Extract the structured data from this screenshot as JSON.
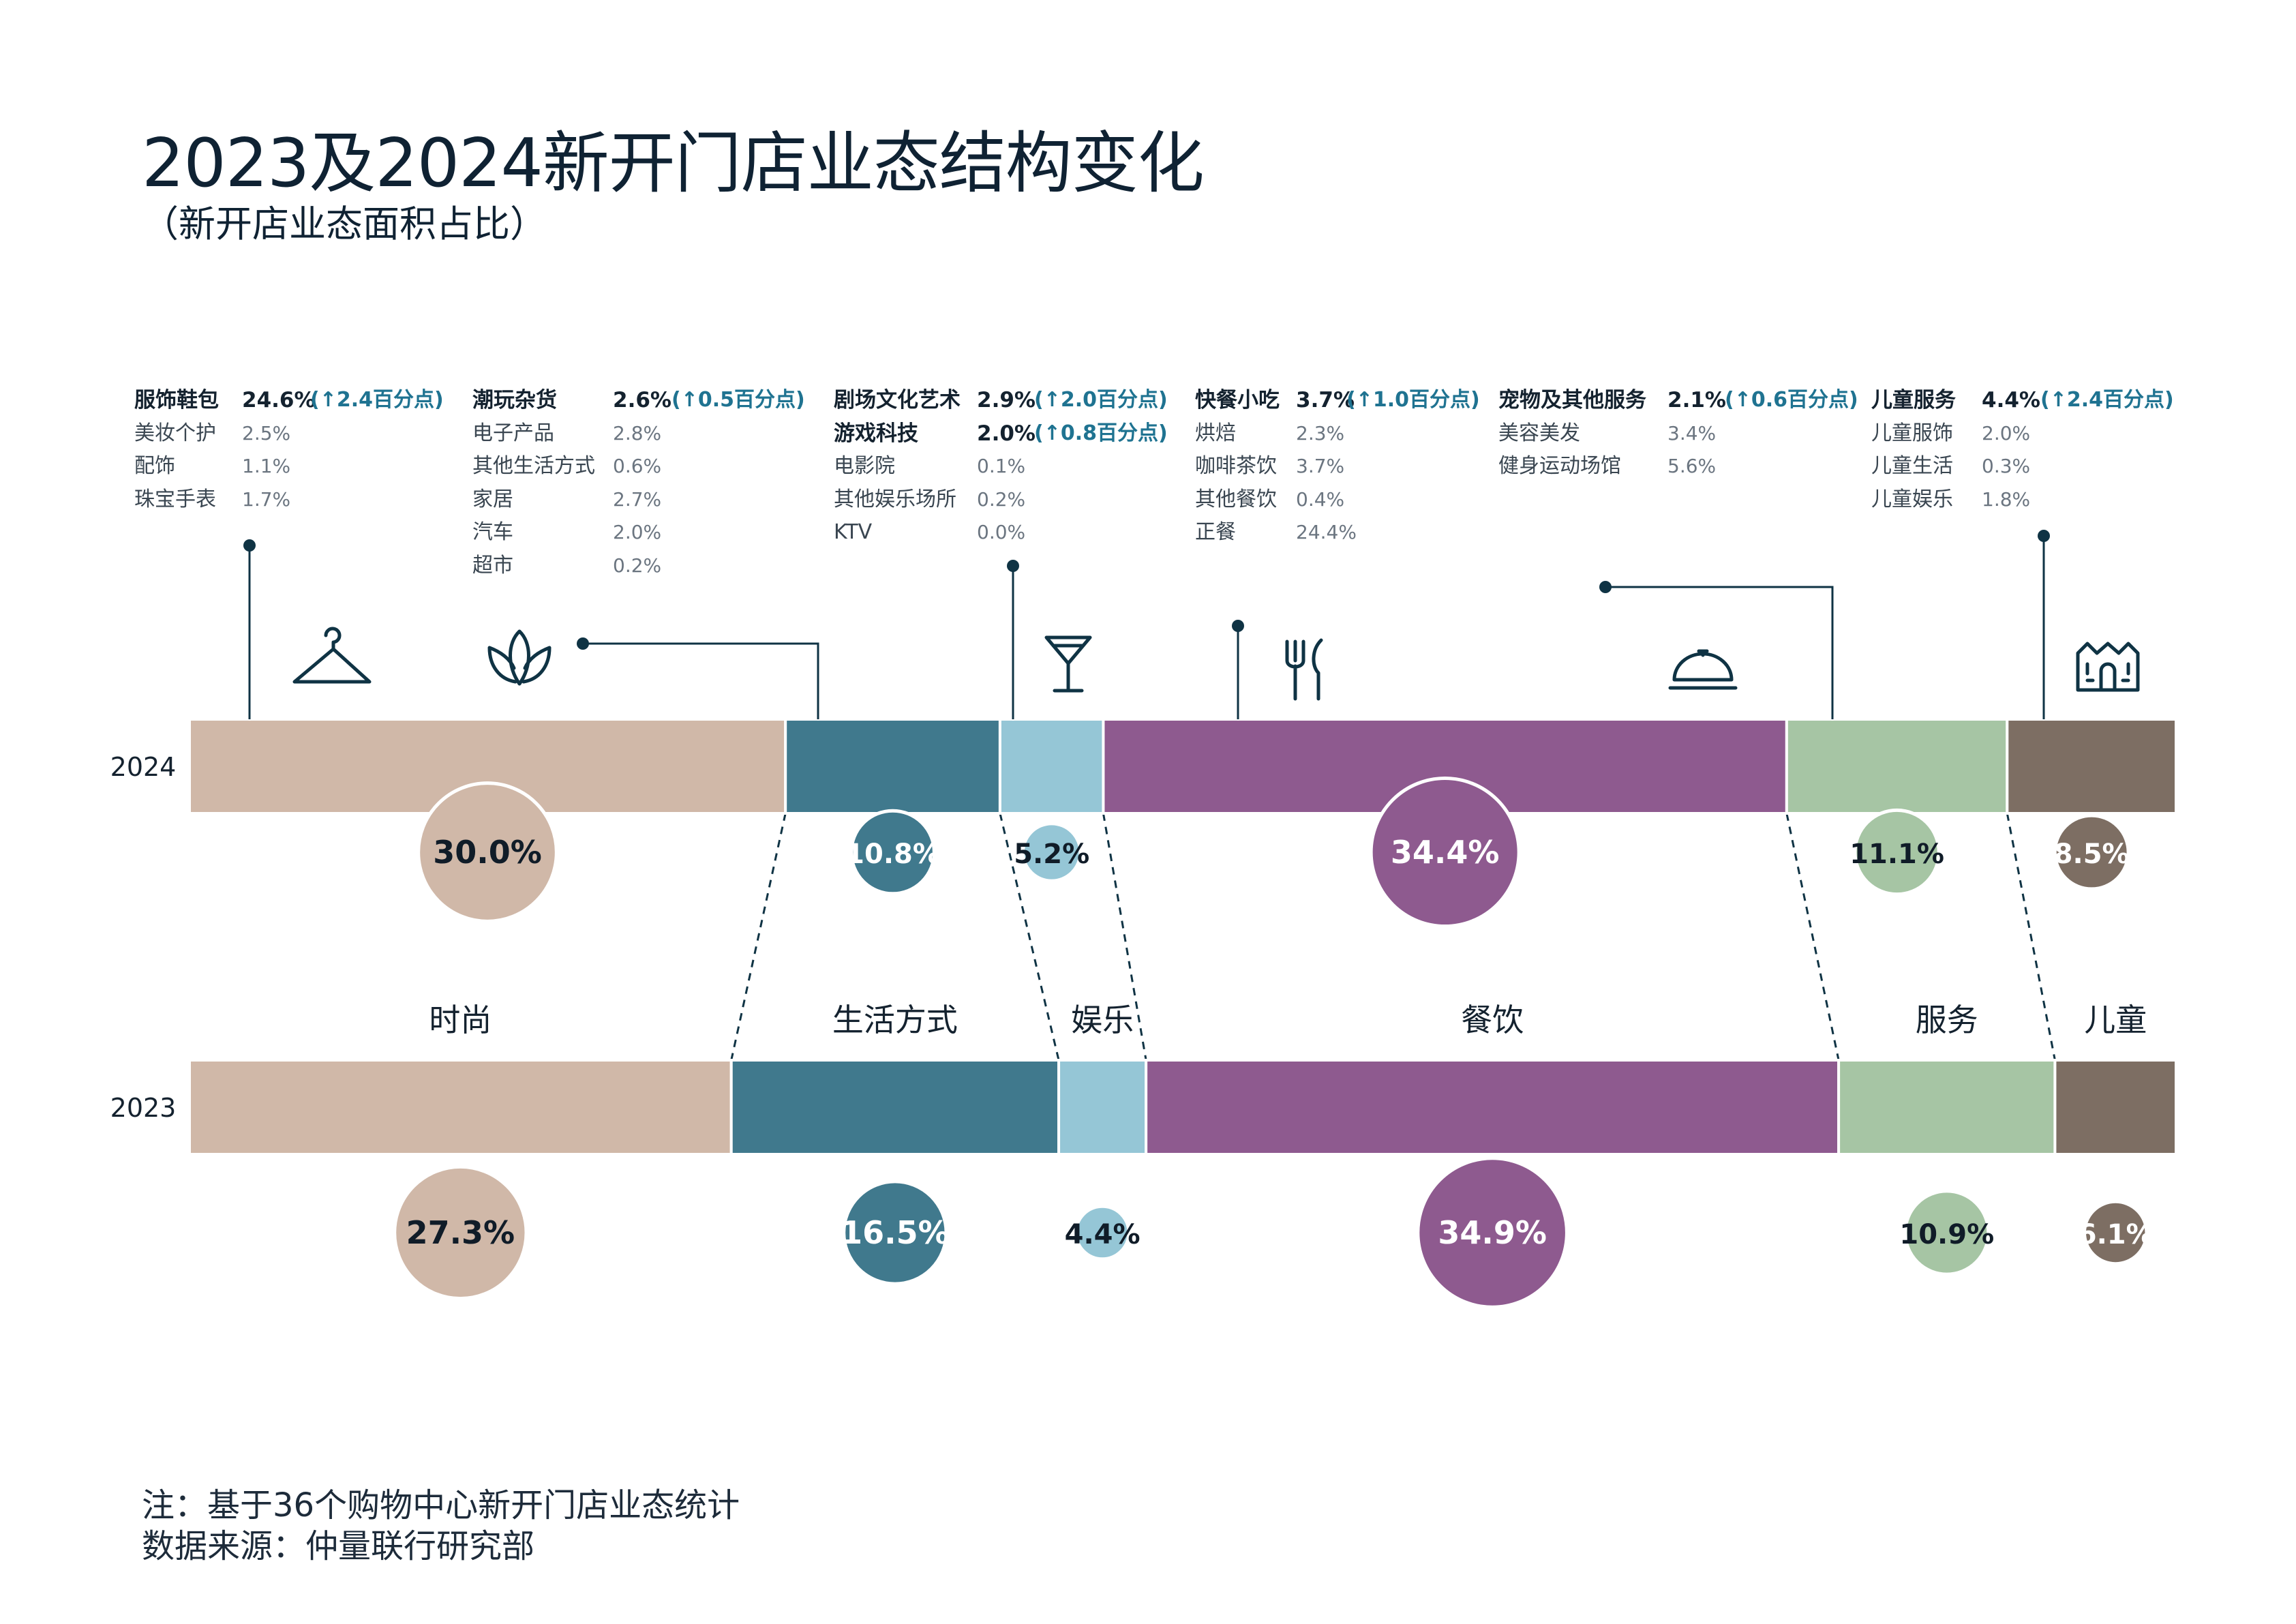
{
  "title": "2023及2024新开门店业态结构变化",
  "subtitle": "（新开店业态面积占比）",
  "notes": {
    "note": "注：基于36个购物中心新开门店业态统计",
    "source": "数据来源：仲量联行研究部"
  },
  "colors": {
    "fashion": "#d0b8a8",
    "lifestyle": "#40798d",
    "entertainment": "#95c6d6",
    "dining": "#8e5a8f",
    "services": "#a6c5a4",
    "kids": "#7d6e63",
    "ink": "#0f3344",
    "accent": "#1f7391"
  },
  "icons": [
    "hanger-icon",
    "lotus-icon",
    "cocktail-icon",
    "fork-knife-icon",
    "cloche-icon",
    "house-icon"
  ],
  "chart_data": {
    "type": "bar",
    "subtype": "stacked-100-horizontal",
    "categories": [
      "时尚",
      "生活方式",
      "娱乐",
      "餐饮",
      "服务",
      "儿童"
    ],
    "series": [
      {
        "name": "2024",
        "values": [
          30.0,
          10.8,
          5.2,
          34.4,
          11.1,
          8.5
        ],
        "labels": [
          "30.0%",
          "10.8%",
          "5.2%",
          "34.4%",
          "11.1%",
          "8.5%"
        ]
      },
      {
        "name": "2023",
        "values": [
          27.3,
          16.5,
          4.4,
          34.9,
          10.9,
          6.1
        ],
        "labels": [
          "27.3%",
          "16.5%",
          "4.4%",
          "34.9%",
          "10.9%",
          "6.1%"
        ]
      }
    ],
    "breakdown": [
      {
        "rows": [
          {
            "name": "服饰鞋包",
            "value": "24.6%",
            "change": "(↑2.4百分点)",
            "bold": true
          },
          {
            "name": "美妆个护",
            "value": "2.5%"
          },
          {
            "name": "配饰",
            "value": "1.1%"
          },
          {
            "name": "珠宝手表",
            "value": "1.7%"
          }
        ]
      },
      {
        "rows": [
          {
            "name": "潮玩杂货",
            "value": "2.6%",
            "change": "(↑0.5百分点)",
            "bold": true
          },
          {
            "name": "电子产品",
            "value": "2.8%"
          },
          {
            "name": "其他生活方式",
            "value": "0.6%"
          },
          {
            "name": "家居",
            "value": "2.7%"
          },
          {
            "name": "汽车",
            "value": "2.0%"
          },
          {
            "name": "超市",
            "value": "0.2%"
          }
        ]
      },
      {
        "rows": [
          {
            "name": "剧场文化艺术",
            "value": "2.9%",
            "change": "(↑2.0百分点)",
            "bold": true
          },
          {
            "name": "游戏科技",
            "value": "2.0%",
            "change": "(↑0.8百分点)",
            "bold": true
          },
          {
            "name": "电影院",
            "value": "0.1%"
          },
          {
            "name": "其他娱乐场所",
            "value": "0.2%"
          },
          {
            "name": "KTV",
            "value": "0.0%"
          }
        ]
      },
      {
        "rows": [
          {
            "name": "快餐小吃",
            "value": "3.7%",
            "change": "(↑1.0百分点)",
            "bold": true
          },
          {
            "name": "烘焙",
            "value": "2.3%"
          },
          {
            "name": "咖啡茶饮",
            "value": "3.7%"
          },
          {
            "name": "其他餐饮",
            "value": "0.4%"
          },
          {
            "name": "正餐",
            "value": "24.4%"
          }
        ]
      },
      {
        "rows": [
          {
            "name": "宠物及其他服务",
            "value": "2.1%",
            "change": "(↑0.6百分点)",
            "bold": true
          },
          {
            "name": "美容美发",
            "value": "3.4%"
          },
          {
            "name": "健身运动场馆",
            "value": "5.6%"
          }
        ]
      },
      {
        "rows": [
          {
            "name": "儿童服务",
            "value": "4.4%",
            "change": "(↑2.4百分点)",
            "bold": true
          },
          {
            "name": "儿童服饰",
            "value": "2.0%"
          },
          {
            "name": "儿童生活",
            "value": "0.3%"
          },
          {
            "name": "儿童娱乐",
            "value": "1.8%"
          }
        ]
      }
    ]
  }
}
